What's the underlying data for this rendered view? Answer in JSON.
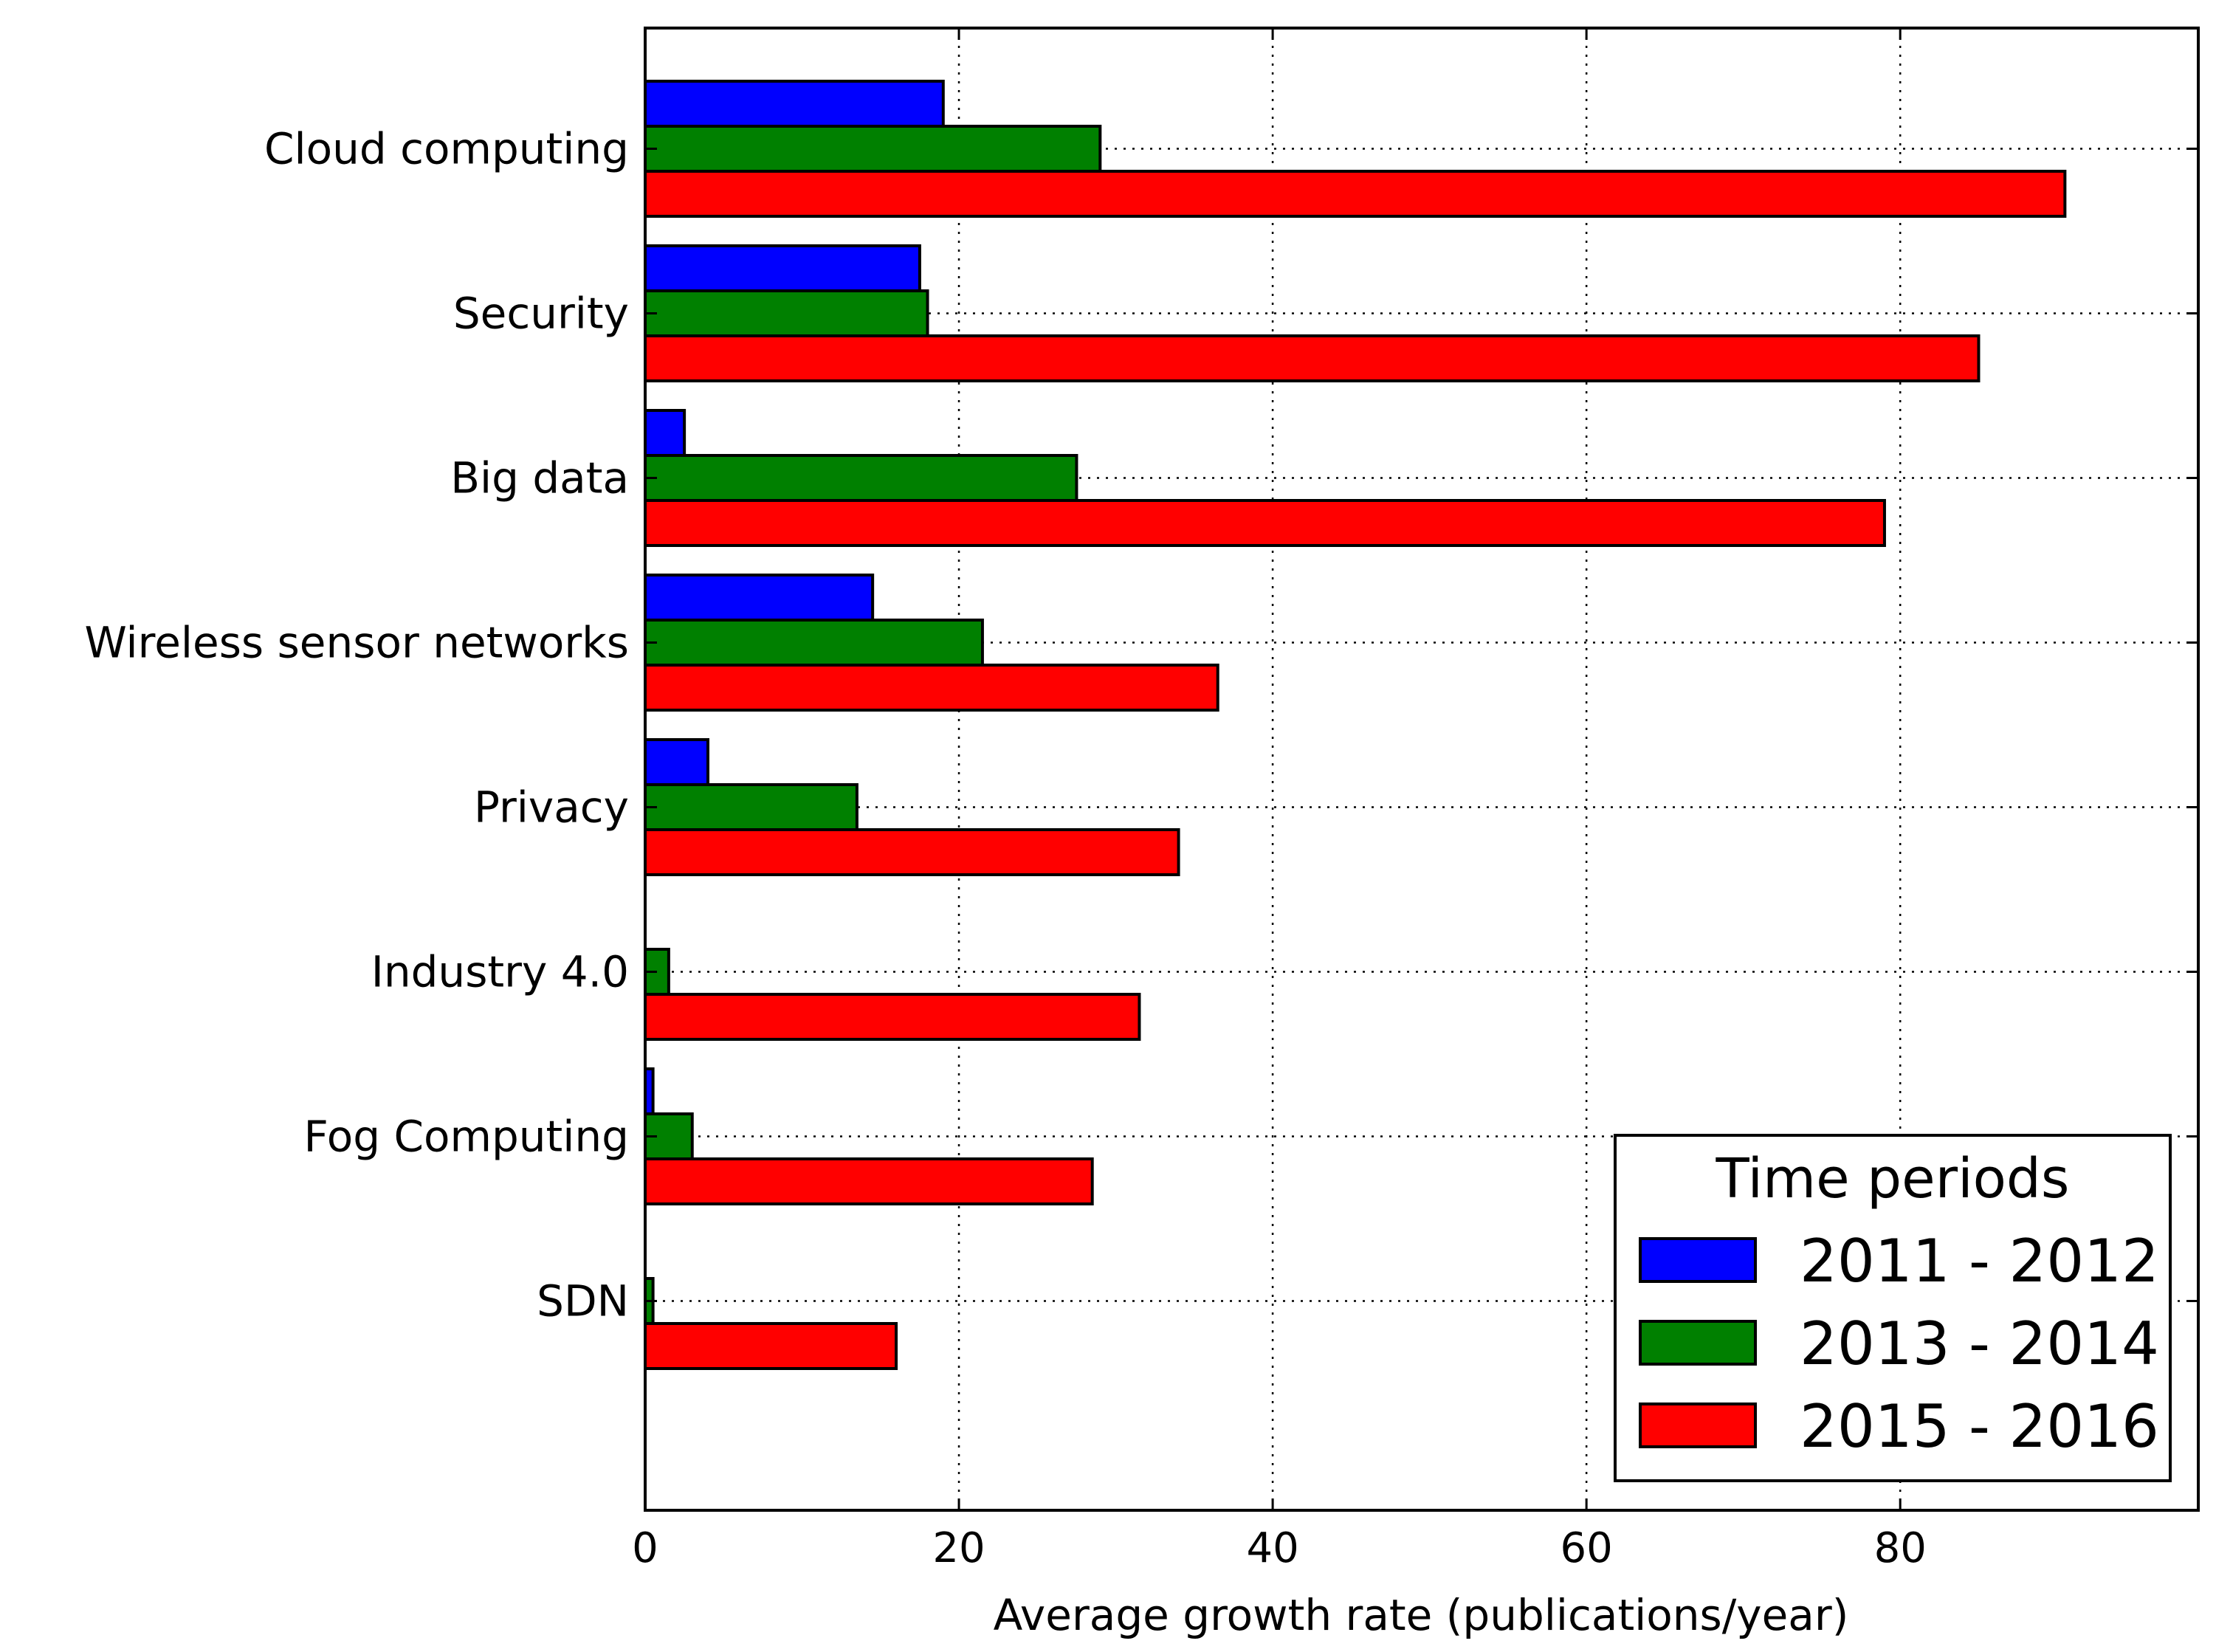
{
  "chart_data": {
    "type": "bar",
    "orientation": "horizontal",
    "title": "",
    "xlabel": "Average growth rate (publications/year)",
    "ylabel": "",
    "xlim": [
      0,
      99
    ],
    "xticks": [
      0,
      20,
      40,
      60,
      80
    ],
    "grid": true,
    "legend_position": "lower-right",
    "legend_title": "Time periods",
    "categories": [
      "Cloud computing",
      "Security",
      "Big data",
      "Wireless sensor networks",
      "Privacy",
      "Industry 4.0",
      "Fog Computing",
      "SDN"
    ],
    "series": [
      {
        "name": "2011 - 2012",
        "color": "#0000ff",
        "values": [
          19,
          17.5,
          2.5,
          14.5,
          4,
          0,
          0.5,
          0
        ]
      },
      {
        "name": "2013 - 2014",
        "color": "#008000",
        "values": [
          29,
          18,
          27.5,
          21.5,
          13.5,
          1.5,
          3,
          0.5
        ]
      },
      {
        "name": "2015 - 2016",
        "color": "#ff0000",
        "values": [
          90.5,
          85,
          79,
          36.5,
          34,
          31.5,
          28.5,
          16
        ]
      }
    ]
  }
}
